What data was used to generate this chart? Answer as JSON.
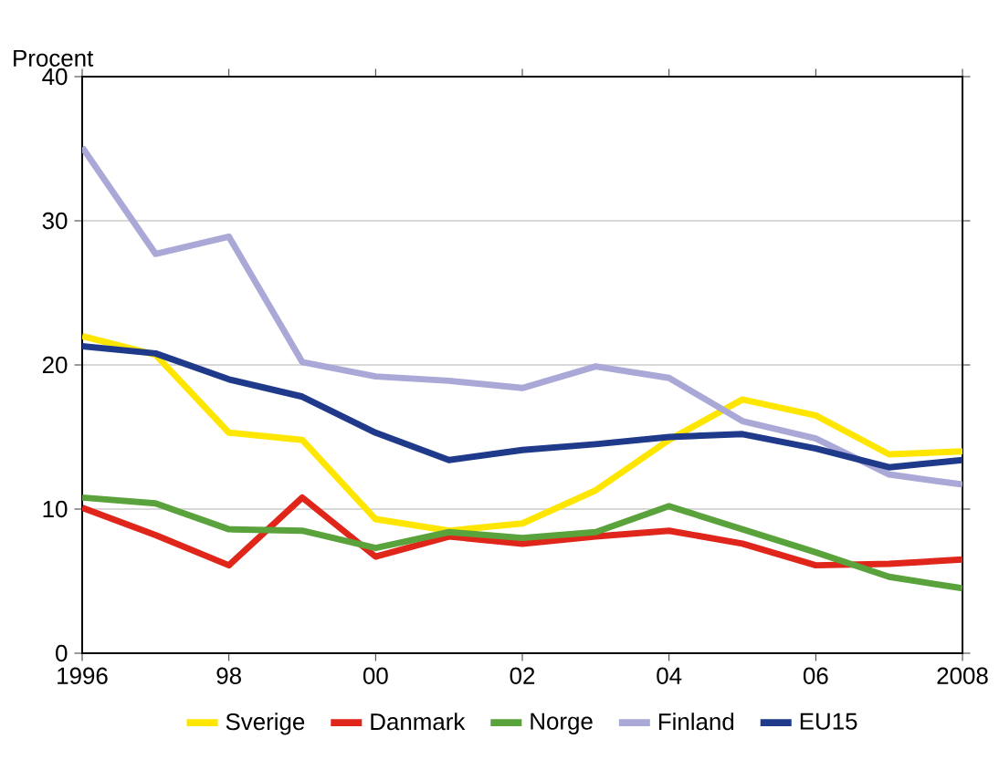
{
  "chart_data": {
    "type": "line",
    "ylabel": "Procent",
    "x": [
      1996,
      1997,
      1998,
      1999,
      2000,
      2001,
      2002,
      2003,
      2004,
      2005,
      2006,
      2007,
      2008
    ],
    "xlim": [
      1996,
      2008
    ],
    "ylim": [
      0,
      40
    ],
    "xticks": [
      {
        "value": 1996,
        "label": "1996"
      },
      {
        "value": 1998,
        "label": "98"
      },
      {
        "value": 2000,
        "label": "00"
      },
      {
        "value": 2002,
        "label": "02"
      },
      {
        "value": 2004,
        "label": "04"
      },
      {
        "value": 2006,
        "label": "06"
      },
      {
        "value": 2008,
        "label": "2008"
      }
    ],
    "yticks": [
      0,
      10,
      20,
      30,
      40
    ],
    "grid": "y",
    "legend": "bottom",
    "line_style": "solid",
    "marker": "none",
    "series": [
      {
        "name": "Sverige",
        "color": "#ffe600",
        "values": [
          22,
          20.7,
          15.3,
          14.8,
          9.3,
          8.5,
          9,
          11.3,
          14.8,
          17.6,
          16.5,
          13.8,
          14
        ]
      },
      {
        "name": "Danmark",
        "color": "#e0261b",
        "values": [
          10.1,
          8.2,
          6.1,
          10.8,
          6.7,
          8.1,
          7.6,
          8.1,
          8.5,
          7.6,
          6.1,
          6.2,
          6.5
        ]
      },
      {
        "name": "Norge",
        "color": "#5aa33c",
        "values": [
          10.8,
          10.4,
          8.6,
          8.5,
          7.3,
          8.4,
          8,
          8.4,
          10.2,
          8.6,
          7,
          5.3,
          4.5
        ]
      },
      {
        "name": "Finland",
        "color": "#aaa8d6",
        "values": [
          35.1,
          27.7,
          28.9,
          20.2,
          19.2,
          18.9,
          18.4,
          19.9,
          19.1,
          16.1,
          14.9,
          12.4,
          11.7
        ]
      },
      {
        "name": "EU15",
        "color": "#1f3a8a",
        "values": [
          21.3,
          20.8,
          19,
          17.8,
          15.3,
          13.4,
          14.1,
          14.5,
          15,
          15.2,
          14.2,
          12.9,
          13.4
        ]
      }
    ]
  }
}
